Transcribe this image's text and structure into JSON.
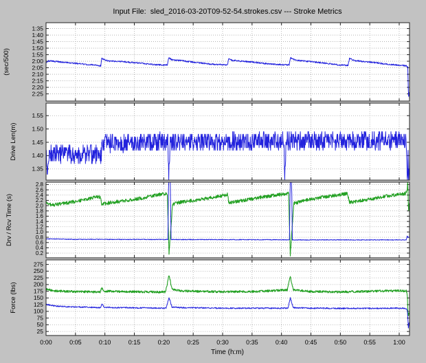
{
  "colors": {
    "bg": "#c2c2c2",
    "panel_bg": "#ffffff",
    "frame": "#222222",
    "grid": "#a8a8a8",
    "blue": "#2222dd",
    "green": "#22a022"
  },
  "chart_data": {
    "type": "line",
    "title": "Input File:  sled_2016-03-20T09-52-54.strokes.csv --- Stroke Metrics",
    "xlabel": "Time (h:m)",
    "x_range": [
      0,
      61.75
    ],
    "x_ticks": {
      "values": [
        0,
        5,
        10,
        15,
        20,
        25,
        30,
        35,
        40,
        45,
        50,
        55,
        60
      ],
      "labels": [
        "0:00",
        "0:05",
        "0:10",
        "0:15",
        "0:20",
        "0:25",
        "0:30",
        "0:35",
        "0:40",
        "0:45",
        "0:50",
        "0:55",
        "1:00"
      ]
    },
    "panels": [
      {
        "name": "pace",
        "ylabel": "(sec/500)",
        "y_range": [
          90.5,
          150.5
        ],
        "tick_font": 8.5,
        "show_x_labels": false,
        "y_ticks": {
          "values": [
            95,
            100,
            105,
            110,
            115,
            120,
            125,
            130,
            135,
            140,
            145
          ],
          "labels": [
            "1:35",
            "1:40",
            "1:45",
            "1:50",
            "1:55",
            "2:00",
            "2:05",
            "2:10",
            "2:15",
            "2:20",
            "2:25"
          ]
        },
        "series": [
          {
            "color": "blue",
            "width": 1,
            "noise": 0.55,
            "seed": 101,
            "quant": 0,
            "anchors": [
              [
                0,
                121
              ],
              [
                0.4,
                119.8
              ],
              [
                2,
                120.4
              ],
              [
                5,
                121.6
              ],
              [
                8,
                122.9
              ],
              [
                9.3,
                123.5
              ],
              [
                9.45,
                117.6
              ],
              [
                9.8,
                118.7
              ],
              [
                10.7,
                119.9
              ],
              [
                13,
                120.3
              ],
              [
                16,
                121.5
              ],
              [
                18.5,
                122.7
              ],
              [
                20.6,
                123
              ],
              [
                20.85,
                117.3
              ],
              [
                21.4,
                118.9
              ],
              [
                23,
                119.6
              ],
              [
                26,
                121.3
              ],
              [
                28,
                122.2
              ],
              [
                30.8,
                122.9
              ],
              [
                31.05,
                117.8
              ],
              [
                31.6,
                119.3
              ],
              [
                33,
                119.9
              ],
              [
                35,
                120.6
              ],
              [
                37,
                121.6
              ],
              [
                39,
                122.4
              ],
              [
                41.3,
                122.8
              ],
              [
                41.55,
                117.4
              ],
              [
                42.3,
                119.1
              ],
              [
                44,
                119.9
              ],
              [
                46,
                120.8
              ],
              [
                48,
                121.8
              ],
              [
                50,
                122.9
              ],
              [
                51.3,
                123.3
              ],
              [
                51.55,
                117.9
              ],
              [
                52.4,
                119.5
              ],
              [
                54,
                120.3
              ],
              [
                56,
                121.2
              ],
              [
                58,
                122.3
              ],
              [
                60,
                123
              ],
              [
                61.2,
                123.4
              ],
              [
                61.45,
                124.5
              ],
              [
                61.58,
                148
              ],
              [
                61.68,
                142
              ],
              [
                61.75,
                149
              ]
            ]
          }
        ]
      },
      {
        "name": "drive-length",
        "ylabel": "Drive Len(m)",
        "y_range": [
          1.597,
          1.308
        ],
        "tick_font": 8.5,
        "show_x_labels": false,
        "y_ticks": {
          "values": [
            1.55,
            1.5,
            1.45,
            1.4,
            1.35
          ],
          "labels": [
            "1.55",
            "1.50",
            "1.45",
            "1.40",
            "1.35"
          ]
        },
        "series": [
          {
            "color": "blue",
            "width": 1,
            "noise": 0.034,
            "seed": 202,
            "quant": 0.01,
            "anchors": [
              [
                0,
                1.41
              ],
              [
                0.22,
                1.335
              ],
              [
                0.45,
                1.405
              ],
              [
                9.4,
                1.405
              ],
              [
                9.55,
                1.445
              ],
              [
                15,
                1.45
              ],
              [
                20.7,
                1.452
              ],
              [
                20.85,
                1.31
              ],
              [
                21.05,
                1.45
              ],
              [
                25,
                1.452
              ],
              [
                40.4,
                1.455
              ],
              [
                40.55,
                1.31
              ],
              [
                40.75,
                1.452
              ],
              [
                41.3,
                1.455
              ],
              [
                61.2,
                1.458
              ],
              [
                61.35,
                1.31
              ],
              [
                61.5,
                1.385
              ],
              [
                61.62,
                1.31
              ],
              [
                61.75,
                1.4
              ]
            ]
          }
        ]
      },
      {
        "name": "drive-recovery-time",
        "ylabel": "Drv / Rcv Time (s)",
        "y_range": [
          2.89,
          0.02
        ],
        "tick_font": 8,
        "show_x_labels": false,
        "y_ticks": {
          "values": [
            2.8,
            2.6,
            2.4,
            2.2,
            2.0,
            1.8,
            1.6,
            1.4,
            1.2,
            1.0,
            0.8,
            0.6,
            0.4,
            0.2
          ],
          "labels": [
            "2.8",
            "2.6",
            "2.4",
            "2.2",
            "2.0",
            "1.8",
            "1.6",
            "1.4",
            "1.2",
            "1.0",
            "0.8",
            "0.6",
            "0.4",
            "0.2"
          ]
        },
        "series": [
          {
            "color": "green",
            "width": 1.1,
            "noise": 0.065,
            "seed": 303,
            "quant": 0,
            "anchors": [
              [
                0,
                2.12
              ],
              [
                1,
                2.02
              ],
              [
                3,
                2.08
              ],
              [
                6,
                2.2
              ],
              [
                8,
                2.3
              ],
              [
                9.2,
                2.33
              ],
              [
                9.45,
                2.05
              ],
              [
                11,
                2.12
              ],
              [
                14,
                2.2
              ],
              [
                17,
                2.32
              ],
              [
                19.5,
                2.43
              ],
              [
                20.6,
                2.45
              ],
              [
                20.9,
                0.15
              ],
              [
                21.5,
                2.05
              ],
              [
                23,
                2.14
              ],
              [
                26,
                2.22
              ],
              [
                29,
                2.34
              ],
              [
                30.8,
                2.42
              ],
              [
                31.1,
                2.1
              ],
              [
                33,
                2.18
              ],
              [
                36,
                2.3
              ],
              [
                39,
                2.4
              ],
              [
                41.2,
                2.46
              ],
              [
                41.5,
                0.15
              ],
              [
                42.1,
                2.08
              ],
              [
                44,
                2.2
              ],
              [
                47,
                2.32
              ],
              [
                50,
                2.42
              ],
              [
                51.2,
                2.46
              ],
              [
                51.55,
                2.12
              ],
              [
                54,
                2.2
              ],
              [
                57,
                2.33
              ],
              [
                60,
                2.43
              ],
              [
                61.1,
                2.46
              ],
              [
                61.35,
                2.6
              ],
              [
                61.45,
                2.95
              ],
              [
                61.58,
                1.8
              ],
              [
                61.68,
                2.2
              ],
              [
                61.75,
                1.7
              ]
            ]
          },
          {
            "color": "blue",
            "width": 1,
            "noise": 0.013,
            "seed": 404,
            "quant": 0,
            "anchors": [
              [
                0,
                0.74
              ],
              [
                5,
                0.72
              ],
              [
                20.7,
                0.715
              ],
              [
                20.82,
                2.95
              ],
              [
                21.1,
                2.95
              ],
              [
                21.25,
                0.715
              ],
              [
                40,
                0.705
              ],
              [
                41.35,
                0.705
              ],
              [
                41.48,
                2.95
              ],
              [
                41.72,
                2.95
              ],
              [
                41.85,
                0.7
              ],
              [
                60,
                0.7
              ],
              [
                61.2,
                0.7
              ],
              [
                61.35,
                0.85
              ],
              [
                61.55,
                0.78
              ],
              [
                61.75,
                0.82
              ]
            ]
          }
        ]
      },
      {
        "name": "force",
        "ylabel": "Force (lbs)",
        "y_range": [
          292,
          10
        ],
        "tick_font": 8.5,
        "show_x_labels": true,
        "y_ticks": {
          "values": [
            275,
            250,
            225,
            200,
            175,
            150,
            125,
            100,
            75,
            50,
            25
          ],
          "labels": [
            "275",
            "250",
            "225",
            "200",
            "175",
            "150",
            "125",
            "100",
            "75",
            "50",
            "25"
          ]
        },
        "series": [
          {
            "color": "green",
            "width": 1.1,
            "noise": 4.2,
            "seed": 505,
            "quant": 0,
            "anchors": [
              [
                0,
                183
              ],
              [
                1.5,
                176
              ],
              [
                4,
                174
              ],
              [
                9.2,
                172
              ],
              [
                9.45,
                190
              ],
              [
                9.8,
                176
              ],
              [
                12,
                174
              ],
              [
                20.3,
                172
              ],
              [
                20.9,
                236
              ],
              [
                21.4,
                182
              ],
              [
                23,
                176
              ],
              [
                30,
                173
              ],
              [
                36,
                174
              ],
              [
                41,
                180
              ],
              [
                41.5,
                231
              ],
              [
                42,
                180
              ],
              [
                45,
                174
              ],
              [
                50,
                172
              ],
              [
                55,
                175
              ],
              [
                60,
                177
              ],
              [
                61.2,
                176
              ],
              [
                61.38,
                160
              ],
              [
                61.52,
                72
              ],
              [
                61.64,
                100
              ],
              [
                61.75,
                80
              ]
            ]
          },
          {
            "color": "blue",
            "width": 1,
            "noise": 2.4,
            "seed": 606,
            "quant": 0,
            "anchors": [
              [
                0,
                126
              ],
              [
                1.5,
                120
              ],
              [
                4,
                117
              ],
              [
                9.3,
                114
              ],
              [
                9.5,
                127
              ],
              [
                9.9,
                115
              ],
              [
                12,
                114
              ],
              [
                20.4,
                112
              ],
              [
                20.9,
                152
              ],
              [
                21.4,
                116
              ],
              [
                23,
                114
              ],
              [
                30,
                112
              ],
              [
                41.1,
                112
              ],
              [
                41.5,
                150
              ],
              [
                42,
                114
              ],
              [
                45,
                112
              ],
              [
                50,
                111
              ],
              [
                55,
                111
              ],
              [
                60,
                112
              ],
              [
                61.2,
                111
              ],
              [
                61.4,
                100
              ],
              [
                61.55,
                38
              ],
              [
                61.68,
                60
              ],
              [
                61.75,
                45
              ]
            ]
          }
        ]
      }
    ]
  }
}
